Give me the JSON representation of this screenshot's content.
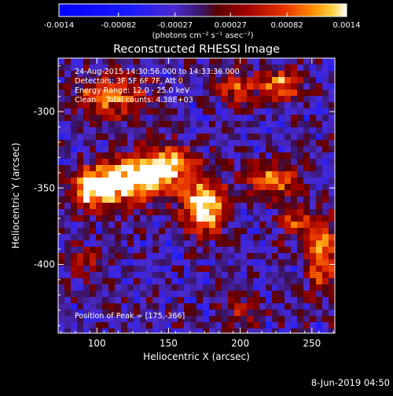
{
  "colorbar": {
    "ticks": [
      "-0.0014",
      "-0.00082",
      "-0.00027",
      "0.00027",
      "0.00082",
      "0.0014"
    ],
    "units": "(photons cm⁻² s⁻¹ asec⁻²)",
    "range": [
      -0.0014,
      0.0014
    ]
  },
  "chart_data": {
    "type": "heatmap",
    "title": "Reconstructed RHESSI Image",
    "xlabel": "Heliocentric X (arcsec)",
    "ylabel": "Heliocentric Y (arcsec)",
    "xlim": [
      73,
      266
    ],
    "ylim": [
      -445,
      -265
    ],
    "x_ticks": [
      "100",
      "150",
      "200",
      "250"
    ],
    "y_ticks": [
      "-300",
      "-350",
      "-400"
    ],
    "annotations": [
      "24-Aug-2015 14:30:56.000 to 14:33:36.000",
      "Detectors: 3F 5F 6F 7F, Att 0",
      "Energy Range: 12.0 - 25.0 keV",
      "Clean    Total counts: 4.38E+03"
    ],
    "peak_label": "Position of Peak = [175,-366]",
    "peak": [
      175,
      -366
    ],
    "sources": [
      {
        "x": 98,
        "y": -350,
        "sx": 11,
        "sy": 9,
        "amp": 1.2
      },
      {
        "x": 125,
        "y": -345,
        "sx": 16,
        "sy": 10,
        "amp": 1.15
      },
      {
        "x": 150,
        "y": -336,
        "sx": 14,
        "sy": 9,
        "amp": 1.0
      },
      {
        "x": 175,
        "y": -362,
        "sx": 10,
        "sy": 12,
        "amp": 1.25
      },
      {
        "x": 222,
        "y": -345,
        "sx": 14,
        "sy": 8,
        "amp": 0.75
      },
      {
        "x": 110,
        "y": -290,
        "sx": 16,
        "sy": 9,
        "amp": 0.8
      },
      {
        "x": 198,
        "y": -285,
        "sx": 10,
        "sy": 7,
        "amp": 0.65
      },
      {
        "x": 228,
        "y": -283,
        "sx": 11,
        "sy": 7,
        "amp": 0.8
      },
      {
        "x": 256,
        "y": -392,
        "sx": 7,
        "sy": 17,
        "amp": 0.95
      },
      {
        "x": 237,
        "y": -372,
        "sx": 8,
        "sy": 6,
        "amp": 0.6
      },
      {
        "x": 200,
        "y": -430,
        "sx": 9,
        "sy": 6,
        "amp": 0.5
      },
      {
        "x": 92,
        "y": -398,
        "sx": 10,
        "sy": 6,
        "amp": 0.45
      }
    ]
  },
  "footer": "8-Jun-2019 04:50"
}
